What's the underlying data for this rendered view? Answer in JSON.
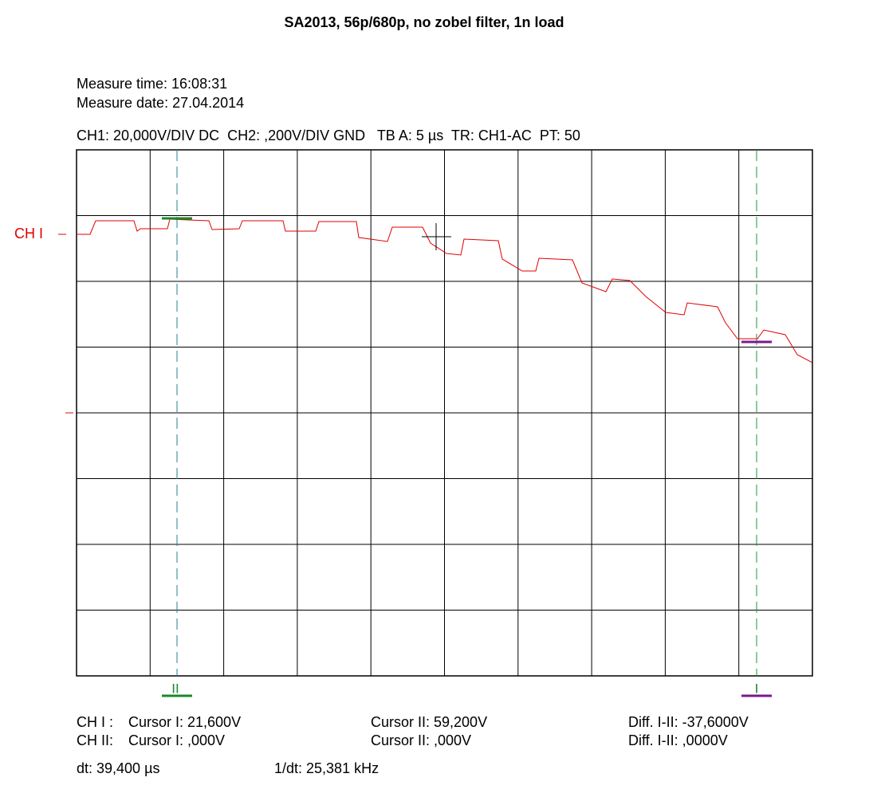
{
  "header": {
    "title": "SA2013, 56p/680p, no zobel filter, 1n load",
    "measure_time": "Measure time: 16:08:31",
    "measure_date": "Measure date: 27.04.2014",
    "settings": "CH1: 20,000V/DIV DC  CH2: ,200V/DIV GND   TB A: 5 µs  TR: CH1-AC  PT: 50"
  },
  "screen": {
    "channel_label": "CH I",
    "cursor_2_marker": "II",
    "cursor_1_marker": "I"
  },
  "readout": {
    "rows": [
      [
        "CH I :",
        "Cursor I: 21,600V",
        "Cursor II: 59,200V",
        "Diff. I-II: -37,6000V"
      ],
      [
        "CH II:",
        "Cursor I: ,000V",
        "Cursor II: ,000V",
        "Diff. I-II: ,0000V"
      ]
    ],
    "dt": "dt: 39,400 µs",
    "inv_dt": "1/dt: 25,381 kHz"
  }
}
